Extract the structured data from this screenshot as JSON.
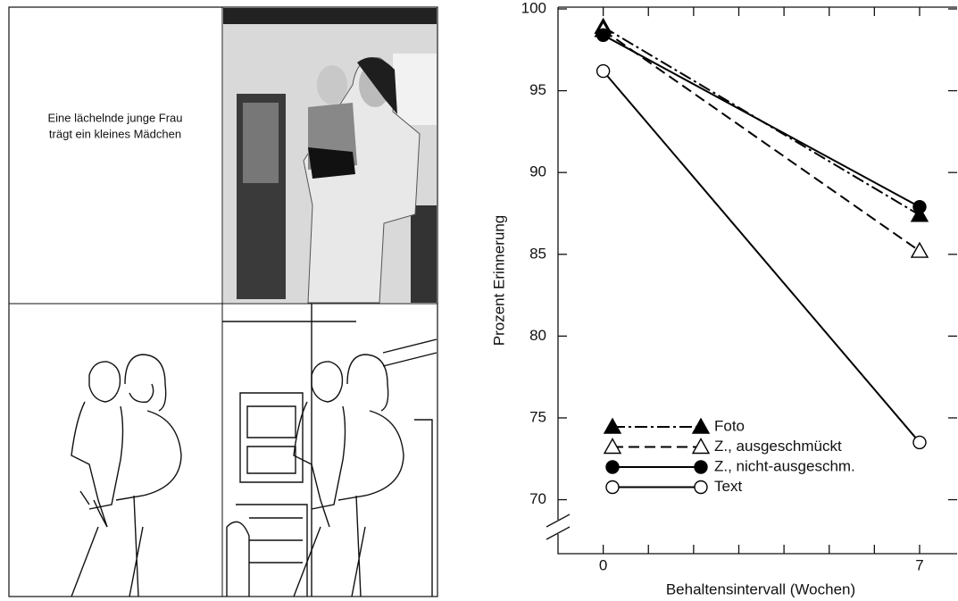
{
  "panel": {
    "caption_lines": [
      "Eine lächelnde junge Frau",
      "trägt ein kleines Mädchen"
    ]
  },
  "chart_data": {
    "type": "line",
    "x_label": "Behaltensintervall (Wochen)",
    "y_label": "Prozent Erinnerung",
    "x": [
      0,
      7
    ],
    "xlim": [
      -1,
      7.83
    ],
    "xticks": [
      0,
      7
    ],
    "x_minor_ticks": [
      1,
      2,
      3,
      4,
      5,
      6
    ],
    "ylim": [
      66.7,
      100
    ],
    "yticks": [
      70,
      75,
      80,
      85,
      90,
      95,
      100
    ],
    "axis_break": true,
    "legend": "lower left",
    "series": [
      {
        "name": "Foto",
        "color": "#000000",
        "marker": "triangle",
        "filled": true,
        "dash": "dashdot",
        "values": [
          98.9,
          87.4
        ]
      },
      {
        "name": "Z., ausgeschmückt",
        "color": "#000000",
        "marker": "triangle",
        "filled": false,
        "dash": "dashed",
        "values": [
          98.7,
          85.2
        ]
      },
      {
        "name": "Z., nicht-ausgeschm.",
        "color": "#000000",
        "marker": "circle",
        "filled": true,
        "dash": "solid",
        "values": [
          98.4,
          87.9
        ]
      },
      {
        "name": "Text",
        "color": "#000000",
        "marker": "circle",
        "filled": false,
        "dash": "solid",
        "values": [
          96.2,
          73.5
        ]
      }
    ]
  }
}
